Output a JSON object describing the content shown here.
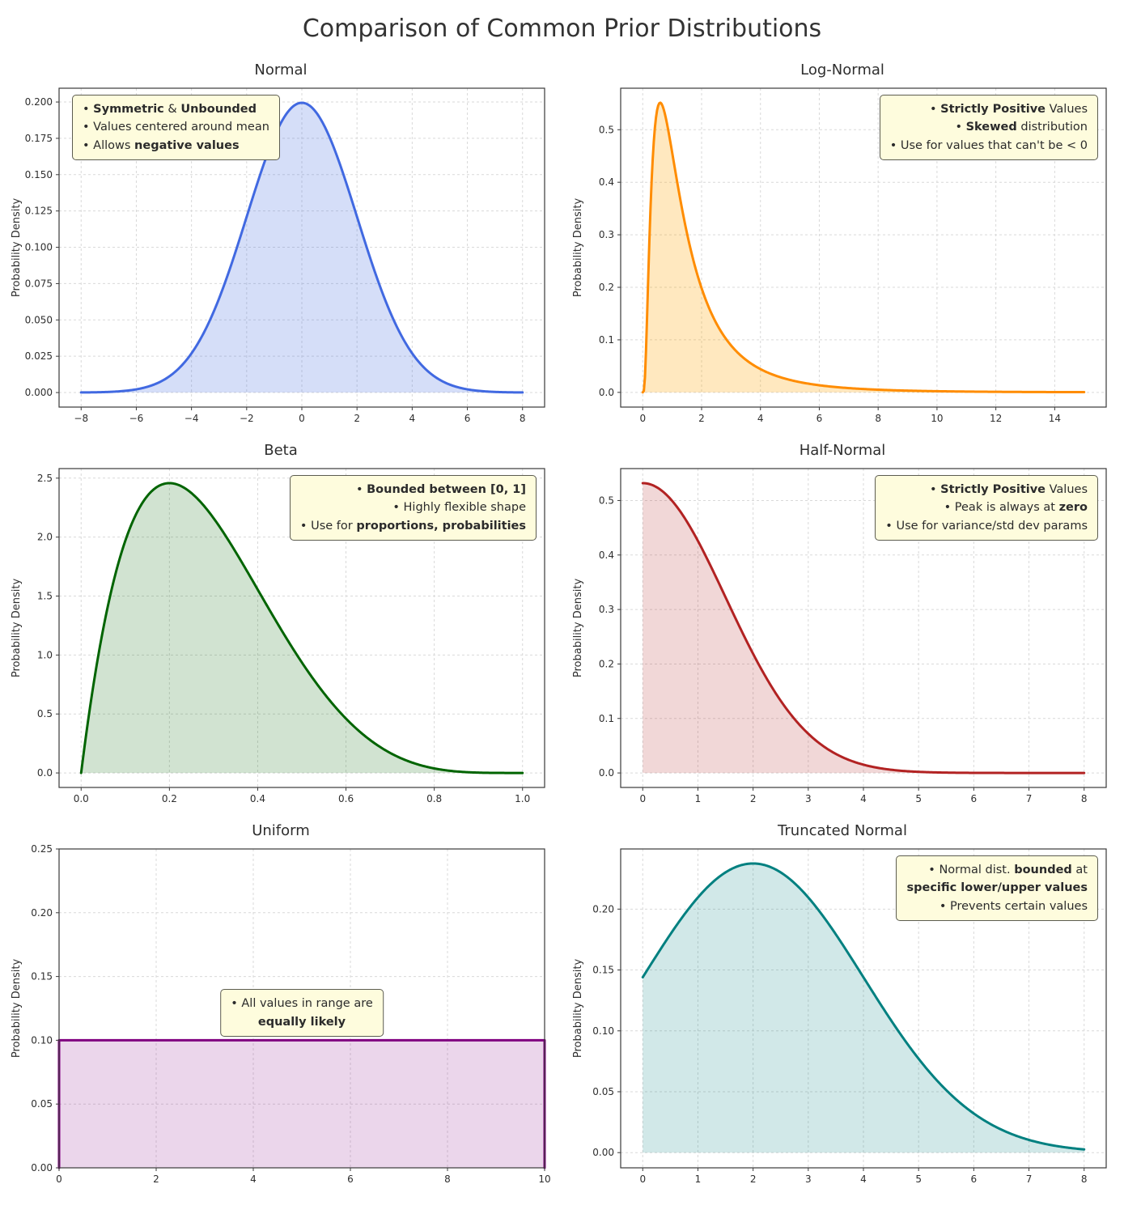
{
  "page": {
    "title": "Comparison of Common Prior Distributions"
  },
  "chart_data": [
    {
      "id": "normal",
      "type": "area",
      "title": "Normal",
      "ylabel": "Probability Density",
      "line_color": "#4169e1",
      "fill_color": "rgba(65,105,225,0.22)",
      "xlim": [
        -8.8,
        8.8
      ],
      "ylim": [
        -0.01,
        0.2095
      ],
      "x_ticks": {
        "values": [
          -8,
          -6,
          -4,
          -2,
          0,
          2,
          4,
          6,
          8
        ],
        "labels": [
          "−8",
          "−6",
          "−4",
          "−2",
          "0",
          "2",
          "4",
          "6",
          "8"
        ]
      },
      "y_ticks": {
        "values": [
          0,
          0.025,
          0.05,
          0.075,
          0.1,
          0.125,
          0.15,
          0.175,
          0.2
        ],
        "labels": [
          "0.000",
          "0.025",
          "0.050",
          "0.075",
          "0.100",
          "0.125",
          "0.150",
          "0.175",
          "0.200"
        ]
      },
      "curve": {
        "kind": "normal",
        "mu": 0,
        "sigma": 2,
        "x_start": -8,
        "x_end": 8
      },
      "peak": {
        "x": 0,
        "y": 0.1995
      },
      "annotation": {
        "anchor": "top-left",
        "align": "left",
        "lines": [
          [
            {
              "t": "• ",
              "b": false
            },
            {
              "t": "Symmetric",
              "b": true
            },
            {
              "t": " & ",
              "b": false
            },
            {
              "t": "Unbounded",
              "b": true
            }
          ],
          [
            {
              "t": "• Values centered around mean",
              "b": false
            }
          ],
          [
            {
              "t": "• Allows ",
              "b": false
            },
            {
              "t": "negative values",
              "b": true
            }
          ]
        ]
      }
    },
    {
      "id": "lognormal",
      "type": "area",
      "title": "Log-Normal",
      "ylabel": "Probability Density",
      "line_color": "#ff8c00",
      "fill_color": "rgba(255,165,0,0.25)",
      "xlim": [
        -0.75,
        15.75
      ],
      "ylim": [
        -0.028,
        0.579
      ],
      "x_ticks": {
        "values": [
          0,
          2,
          4,
          6,
          8,
          10,
          12,
          14
        ],
        "labels": [
          "0",
          "2",
          "4",
          "6",
          "8",
          "10",
          "12",
          "14"
        ]
      },
      "y_ticks": {
        "values": [
          0,
          0.1,
          0.2,
          0.3,
          0.4,
          0.5
        ],
        "labels": [
          "0.0",
          "0.1",
          "0.2",
          "0.3",
          "0.4",
          "0.5"
        ]
      },
      "curve": {
        "kind": "lognormal",
        "mu": 0.2,
        "sigma": 0.85,
        "x_start": 0,
        "x_end": 15
      },
      "peak": {
        "x": 0.59,
        "y": 0.55
      },
      "annotation": {
        "anchor": "top-right",
        "align": "right",
        "lines": [
          [
            {
              "t": "• ",
              "b": false
            },
            {
              "t": "Strictly Positive",
              "b": true
            },
            {
              "t": " Values",
              "b": false
            }
          ],
          [
            {
              "t": "• ",
              "b": false
            },
            {
              "t": "Skewed",
              "b": true
            },
            {
              "t": " distribution",
              "b": false
            }
          ],
          [
            {
              "t": "• Use for values that can't be < 0",
              "b": false
            }
          ]
        ]
      }
    },
    {
      "id": "beta",
      "type": "area",
      "title": "Beta",
      "ylabel": "Probability Density",
      "line_color": "#006400",
      "fill_color": "rgba(0,100,0,0.18)",
      "xlim": [
        -0.05,
        1.05
      ],
      "ylim": [
        -0.123,
        2.581
      ],
      "x_ticks": {
        "values": [
          0,
          0.2,
          0.4,
          0.6,
          0.8,
          1.0
        ],
        "labels": [
          "0.0",
          "0.2",
          "0.4",
          "0.6",
          "0.8",
          "1.0"
        ]
      },
      "y_ticks": {
        "values": [
          0,
          0.5,
          1.0,
          1.5,
          2.0,
          2.5
        ],
        "labels": [
          "0.0",
          "0.5",
          "1.0",
          "1.5",
          "2.0",
          "2.5"
        ]
      },
      "curve": {
        "kind": "beta",
        "a": 2,
        "b": 5,
        "x_start": 0,
        "x_end": 1
      },
      "peak": {
        "x": 0.2,
        "y": 2.46
      },
      "annotation": {
        "anchor": "top-right",
        "align": "right",
        "lines": [
          [
            {
              "t": "• ",
              "b": false
            },
            {
              "t": "Bounded between [0, 1]",
              "b": true
            }
          ],
          [
            {
              "t": "• Highly flexible shape",
              "b": false
            }
          ],
          [
            {
              "t": "• Use for ",
              "b": false
            },
            {
              "t": "proportions, probabilities",
              "b": true
            }
          ]
        ]
      }
    },
    {
      "id": "halfnormal",
      "type": "area",
      "title": "Half-Normal",
      "ylabel": "Probability Density",
      "line_color": "#b22222",
      "fill_color": "rgba(178,34,34,0.18)",
      "xlim": [
        -0.4,
        8.4
      ],
      "ylim": [
        -0.0266,
        0.5586
      ],
      "x_ticks": {
        "values": [
          0,
          1,
          2,
          3,
          4,
          5,
          6,
          7,
          8
        ],
        "labels": [
          "0",
          "1",
          "2",
          "3",
          "4",
          "5",
          "6",
          "7",
          "8"
        ]
      },
      "y_ticks": {
        "values": [
          0,
          0.1,
          0.2,
          0.3,
          0.4,
          0.5
        ],
        "labels": [
          "0.0",
          "0.1",
          "0.2",
          "0.3",
          "0.4",
          "0.5"
        ]
      },
      "curve": {
        "kind": "halfnormal",
        "sigma": 1.5,
        "x_start": 0,
        "x_end": 8
      },
      "peak": {
        "x": 0,
        "y": 0.53
      },
      "annotation": {
        "anchor": "top-right",
        "align": "right",
        "lines": [
          [
            {
              "t": "• ",
              "b": false
            },
            {
              "t": "Strictly Positive",
              "b": true
            },
            {
              "t": " Values",
              "b": false
            }
          ],
          [
            {
              "t": "• Peak is always at ",
              "b": false
            },
            {
              "t": "zero",
              "b": true
            }
          ],
          [
            {
              "t": "• Use for variance/std dev params",
              "b": false
            }
          ]
        ]
      }
    },
    {
      "id": "uniform",
      "type": "area",
      "title": "Uniform",
      "ylabel": "Probability Density",
      "line_color": "#800080",
      "fill_color": "rgba(128,0,128,0.16)",
      "xlim": [
        0,
        10
      ],
      "ylim": [
        0,
        0.25
      ],
      "x_ticks": {
        "values": [
          0,
          2,
          4,
          6,
          8,
          10
        ],
        "labels": [
          "0",
          "2",
          "4",
          "6",
          "8",
          "10"
        ]
      },
      "y_ticks": {
        "values": [
          0,
          0.05,
          0.1,
          0.15,
          0.2,
          0.25
        ],
        "labels": [
          "0.00",
          "0.05",
          "0.10",
          "0.15",
          "0.20",
          "0.25"
        ]
      },
      "curve": {
        "kind": "uniform",
        "lo": 0,
        "hi": 10,
        "height": 0.1
      },
      "peak": {
        "x": null,
        "y": 0.1
      },
      "annotation": {
        "anchor": "center",
        "align": "center",
        "lines": [
          [
            {
              "t": "• All values in range are",
              "b": false
            }
          ],
          [
            {
              "t": "equally likely",
              "b": true
            }
          ]
        ]
      }
    },
    {
      "id": "truncnormal",
      "type": "area",
      "title": "Truncated Normal",
      "ylabel": "Probability Density",
      "line_color": "#008080",
      "fill_color": "rgba(0,128,128,0.18)",
      "xlim": [
        -0.4,
        8.4
      ],
      "ylim": [
        -0.0125,
        0.2494
      ],
      "x_ticks": {
        "values": [
          0,
          1,
          2,
          3,
          4,
          5,
          6,
          7,
          8
        ],
        "labels": [
          "0",
          "1",
          "2",
          "3",
          "4",
          "5",
          "6",
          "7",
          "8"
        ]
      },
      "y_ticks": {
        "values": [
          0,
          0.05,
          0.1,
          0.15,
          0.2
        ],
        "labels": [
          "0.00",
          "0.05",
          "0.10",
          "0.15",
          "0.20"
        ]
      },
      "curve": {
        "kind": "truncnormal",
        "mu": 2,
        "sigma": 2,
        "lo": 0,
        "hi": 8,
        "x_start": 0,
        "x_end": 8
      },
      "peak": {
        "x": 2,
        "y": 0.238
      },
      "annotation": {
        "anchor": "top-right",
        "align": "right",
        "lines": [
          [
            {
              "t": "• Normal dist. ",
              "b": false
            },
            {
              "t": "bounded",
              "b": true
            },
            {
              "t": " at",
              "b": false
            }
          ],
          [
            {
              "t": "specific lower/upper values",
              "b": true
            }
          ],
          [
            {
              "t": "• Prevents certain values",
              "b": false
            }
          ]
        ]
      }
    }
  ]
}
